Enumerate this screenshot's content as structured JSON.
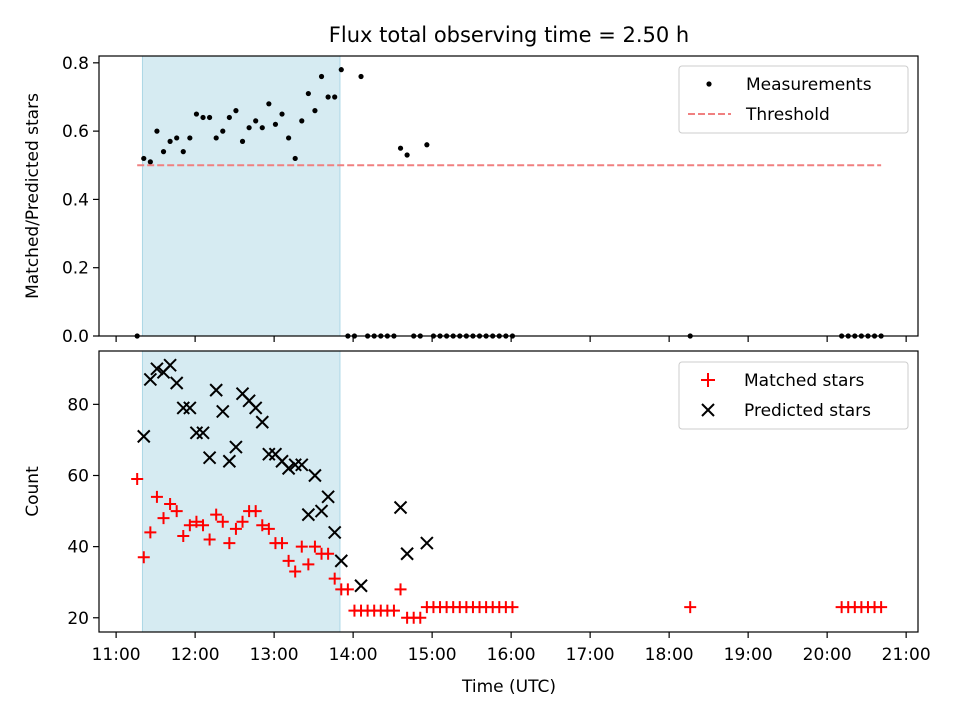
{
  "chart_data": {
    "title": "Flux total observing time = 2.50 h",
    "xlabel": "Time (UTC)",
    "x_tick_labels": [
      "11:00",
      "12:00",
      "13:00",
      "14:00",
      "15:00",
      "16:00",
      "17:00",
      "18:00",
      "19:00",
      "20:00",
      "21:00"
    ],
    "x_ticks": [
      "11:00",
      "12:00",
      "13:00",
      "14:00",
      "15:00",
      "16:00",
      "17:00",
      "18:00",
      "19:00",
      "20:00",
      "21:00"
    ],
    "xlim": [
      "10:47",
      "21:09"
    ],
    "shaded_interval": [
      "11:20",
      "13:50"
    ],
    "colors": {
      "shade": "#add8e6",
      "measurements": "#000000",
      "threshold": "#f08080",
      "matched": "#ff0000",
      "predicted": "#000000"
    },
    "panels": [
      {
        "type": "scatter",
        "ylabel": "Matched/Predicted stars",
        "ylim": [
          0,
          0.82
        ],
        "yticks": [
          0.0,
          0.2,
          0.4,
          0.6,
          0.8
        ],
        "ytick_labels": [
          "0.0",
          "0.2",
          "0.4",
          "0.6",
          "0.8"
        ],
        "legend_position": "top-right",
        "series": [
          {
            "name": "Measurements",
            "style": "dot",
            "x": [
              "11:16",
              "11:21",
              "11:26",
              "11:31",
              "11:36",
              "11:41",
              "11:46",
              "11:51",
              "11:56",
              "12:01",
              "12:06",
              "12:11",
              "12:16",
              "12:21",
              "12:26",
              "12:31",
              "12:36",
              "12:41",
              "12:46",
              "12:51",
              "12:56",
              "13:01",
              "13:06",
              "13:11",
              "13:16",
              "13:21",
              "13:26",
              "13:31",
              "13:36",
              "13:41",
              "13:46",
              "13:51",
              "13:56",
              "14:01",
              "14:06",
              "14:11",
              "14:16",
              "14:21",
              "14:26",
              "14:31",
              "14:36",
              "14:41",
              "14:46",
              "14:51",
              "14:56",
              "15:01",
              "15:06",
              "15:11",
              "15:16",
              "15:21",
              "15:26",
              "15:31",
              "15:36",
              "15:41",
              "15:46",
              "15:51",
              "15:56",
              "16:01",
              "18:16",
              "20:11",
              "20:16",
              "20:21",
              "20:26",
              "20:31",
              "20:36",
              "20:41"
            ],
            "y": [
              0.0,
              0.52,
              0.51,
              0.6,
              0.54,
              0.57,
              0.58,
              0.54,
              0.58,
              0.65,
              0.64,
              0.64,
              0.58,
              0.6,
              0.64,
              0.66,
              0.57,
              0.61,
              0.63,
              0.61,
              0.68,
              0.62,
              0.65,
              0.58,
              0.52,
              0.63,
              0.71,
              0.66,
              0.76,
              0.7,
              0.7,
              0.78,
              0.0,
              0.0,
              0.76,
              0.0,
              0.0,
              0.0,
              0.0,
              0.0,
              0.55,
              0.53,
              0.0,
              0.0,
              0.56,
              0.0,
              0.0,
              0.0,
              0.0,
              0.0,
              0.0,
              0.0,
              0.0,
              0.0,
              0.0,
              0.0,
              0.0,
              0.0,
              0.0,
              0.0,
              0.0,
              0.0,
              0.0,
              0.0,
              0.0,
              0.0
            ]
          },
          {
            "name": "Threshold",
            "style": "dashed-line",
            "x": [
              "11:16",
              "20:41"
            ],
            "y": [
              0.5,
              0.5
            ]
          }
        ]
      },
      {
        "type": "scatter",
        "ylabel": "Count",
        "ylim": [
          16,
          95
        ],
        "yticks": [
          20,
          40,
          60,
          80
        ],
        "ytick_labels": [
          "20",
          "40",
          "60",
          "80"
        ],
        "legend_position": "top-right",
        "series": [
          {
            "name": "Matched stars",
            "style": "plus",
            "x": [
              "11:16",
              "11:21",
              "11:26",
              "11:31",
              "11:36",
              "11:41",
              "11:46",
              "11:51",
              "11:56",
              "12:01",
              "12:06",
              "12:11",
              "12:16",
              "12:21",
              "12:26",
              "12:31",
              "12:36",
              "12:41",
              "12:46",
              "12:51",
              "12:56",
              "13:01",
              "13:06",
              "13:11",
              "13:16",
              "13:21",
              "13:26",
              "13:31",
              "13:36",
              "13:41",
              "13:46",
              "13:51",
              "13:56",
              "14:01",
              "14:06",
              "14:11",
              "14:16",
              "14:21",
              "14:26",
              "14:31",
              "14:36",
              "14:41",
              "14:46",
              "14:51",
              "14:56",
              "15:01",
              "15:06",
              "15:11",
              "15:16",
              "15:21",
              "15:26",
              "15:31",
              "15:36",
              "15:41",
              "15:46",
              "15:51",
              "15:56",
              "16:01",
              "18:16",
              "20:11",
              "20:16",
              "20:21",
              "20:26",
              "20:31",
              "20:36",
              "20:41"
            ],
            "y": [
              59,
              37,
              44,
              54,
              48,
              52,
              50,
              43,
              46,
              47,
              46,
              42,
              49,
              47,
              41,
              45,
              47,
              50,
              50,
              46,
              45,
              41,
              41,
              36,
              33,
              40,
              35,
              40,
              38,
              38,
              31,
              28,
              28,
              22,
              22,
              22,
              22,
              22,
              22,
              22,
              28,
              20,
              20,
              20,
              23,
              23,
              23,
              23,
              23,
              23,
              23,
              23,
              23,
              23,
              23,
              23,
              23,
              23,
              23,
              23,
              23,
              23,
              23,
              23,
              23,
              23
            ]
          },
          {
            "name": "Predicted stars",
            "style": "x",
            "x": [
              "11:21",
              "11:26",
              "11:31",
              "11:36",
              "11:41",
              "11:46",
              "11:51",
              "11:56",
              "12:01",
              "12:06",
              "12:11",
              "12:16",
              "12:21",
              "12:26",
              "12:31",
              "12:36",
              "12:41",
              "12:46",
              "12:51",
              "12:56",
              "13:01",
              "13:06",
              "13:11",
              "13:16",
              "13:21",
              "13:26",
              "13:31",
              "13:36",
              "13:41",
              "13:46",
              "13:51",
              "14:06",
              "14:36",
              "14:41",
              "14:56"
            ],
            "y": [
              71,
              87,
              90,
              89,
              91,
              86,
              79,
              79,
              72,
              72,
              65,
              84,
              78,
              64,
              68,
              83,
              81,
              79,
              75,
              66,
              66,
              64,
              62,
              63,
              63,
              49,
              60,
              50,
              54,
              44,
              36,
              29,
              51,
              38,
              41
            ]
          }
        ]
      }
    ]
  }
}
